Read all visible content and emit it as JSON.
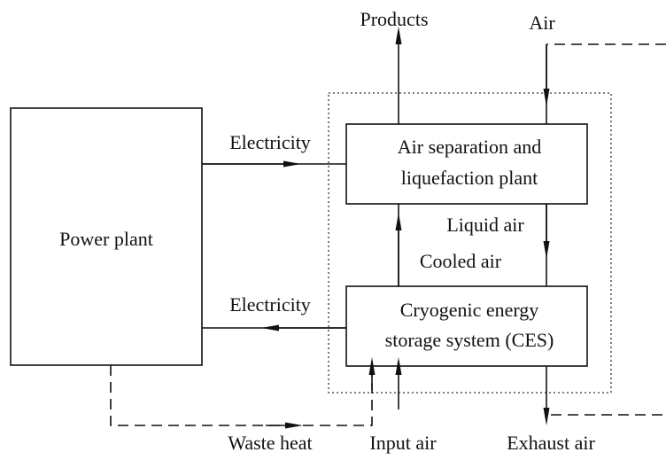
{
  "nodes": [
    {
      "lines": [
        "Power plant"
      ]
    },
    {
      "lines": [
        "Air separation and",
        "liquefaction plant"
      ]
    },
    {
      "lines": [
        "Cryogenic energy",
        "storage system (CES)"
      ]
    }
  ],
  "flows": [
    "Products",
    "Air",
    "Electricity",
    "Electricity",
    "Liquid air",
    "Cooled air",
    "Waste heat",
    "Input air",
    "Exhaust air"
  ]
}
